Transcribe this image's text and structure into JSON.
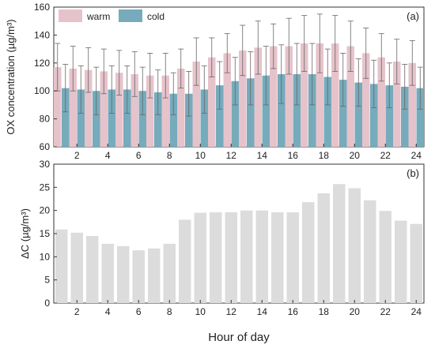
{
  "chart_data": [
    {
      "type": "bar",
      "panel_label": "(a)",
      "ylabel": "OX concentration (µg/m³)",
      "ylim": [
        60,
        160
      ],
      "yticks": [
        60,
        80,
        100,
        120,
        140,
        160
      ],
      "xticks": [
        2,
        4,
        6,
        8,
        10,
        12,
        14,
        16,
        18,
        20,
        22,
        24
      ],
      "legend_position": "top-left",
      "categories": [
        1,
        2,
        3,
        4,
        5,
        6,
        7,
        8,
        9,
        10,
        11,
        12,
        13,
        14,
        15,
        16,
        17,
        18,
        19,
        20,
        21,
        22,
        23,
        24
      ],
      "series": [
        {
          "name": "warm",
          "color": "#e6c3cb",
          "values": [
            117,
            116,
            115,
            114,
            113,
            112,
            111,
            111,
            116,
            121,
            124,
            127,
            129,
            131,
            132,
            132,
            134,
            134,
            134,
            132,
            127,
            124,
            121,
            120
          ],
          "error": [
            17,
            16,
            16,
            16,
            16,
            16,
            16,
            16,
            14,
            17,
            14,
            14,
            18,
            19,
            16,
            20,
            20,
            21,
            20,
            18,
            18,
            17,
            16,
            16
          ]
        },
        {
          "name": "cold",
          "color": "#76abbc",
          "values": [
            102,
            101,
            100,
            101,
            101,
            100,
            99,
            98,
            98,
            101,
            104,
            107,
            109,
            111,
            112,
            112,
            112,
            110,
            108,
            106,
            105,
            104,
            103,
            102
          ],
          "error": [
            17,
            17,
            17,
            17,
            17,
            17,
            16,
            15,
            16,
            17,
            17,
            17,
            19,
            21,
            21,
            22,
            22,
            20,
            19,
            17,
            17,
            16,
            16,
            15
          ]
        }
      ]
    },
    {
      "type": "bar",
      "panel_label": "(b)",
      "ylabel": "ΔC (µg/m³)",
      "xlabel": "Hour of day",
      "ylim": [
        0,
        30
      ],
      "yticks": [
        0,
        5,
        10,
        15,
        20,
        25,
        30
      ],
      "xticks": [
        2,
        4,
        6,
        8,
        10,
        12,
        14,
        16,
        18,
        20,
        22,
        24
      ],
      "categories": [
        1,
        2,
        3,
        4,
        5,
        6,
        7,
        8,
        9,
        10,
        11,
        12,
        13,
        14,
        15,
        16,
        17,
        18,
        19,
        20,
        21,
        22,
        23,
        24
      ],
      "series": [
        {
          "color": "#dcdcdc",
          "values": [
            15.9,
            15.2,
            14.5,
            12.8,
            12.3,
            11.4,
            11.8,
            12.8,
            18.0,
            19.5,
            19.6,
            19.6,
            20.0,
            20.0,
            19.6,
            19.6,
            21.8,
            23.7,
            25.7,
            24.8,
            22.2,
            19.9,
            17.8,
            17.1
          ]
        }
      ]
    }
  ]
}
